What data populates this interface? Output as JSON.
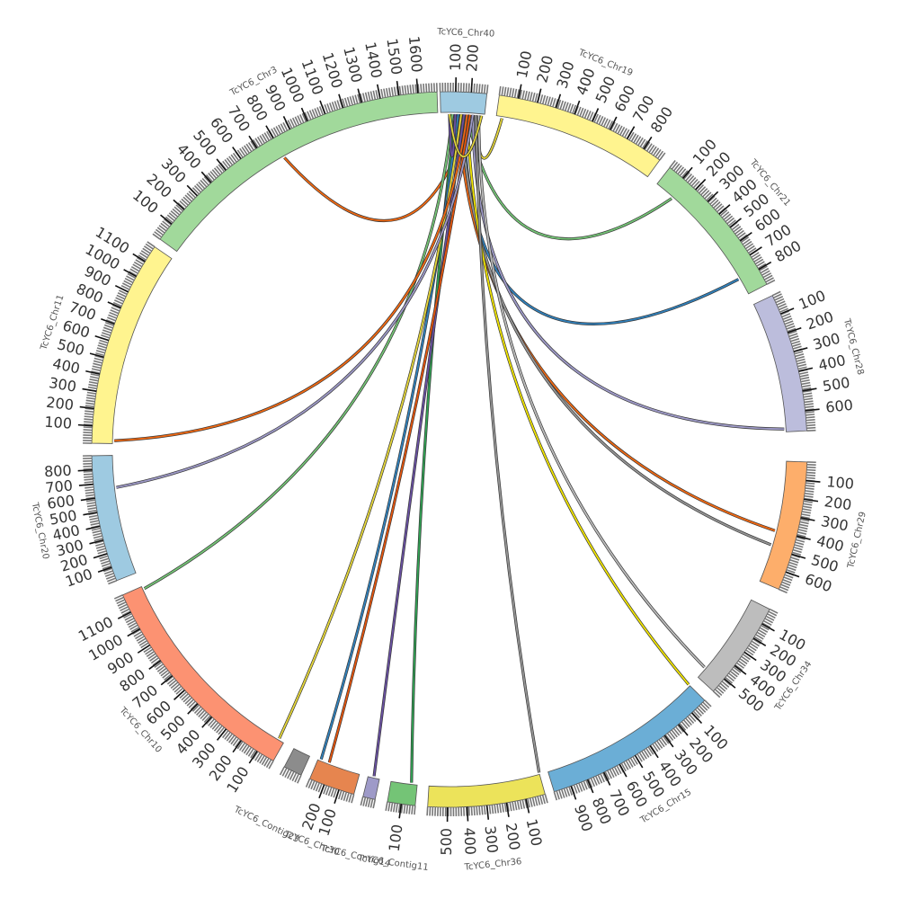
{
  "chromosomes": [
    {
      "name": "TcYC6_Chr40",
      "color": "#9ecae1",
      "start_deg": -1.5,
      "end_deg": 6.0,
      "ticks": [
        "100",
        "200"
      ]
    },
    {
      "name": "TcYC6_Chr19",
      "color": "#fff48f",
      "start_deg": 8.0,
      "end_deg": 36.0,
      "ticks": [
        "100",
        "200",
        "300",
        "400",
        "500",
        "600",
        "700",
        "800"
      ]
    },
    {
      "name": "TcYC6_Chr21",
      "color": "#a1d99b",
      "start_deg": 38.0,
      "end_deg": 62.5,
      "ticks": [
        "100",
        "200",
        "300",
        "400",
        "500",
        "600",
        "700",
        "800"
      ]
    },
    {
      "name": "TcYC6_Chr28",
      "color": "#bcbddc",
      "start_deg": 64.5,
      "end_deg": 87.0,
      "ticks": [
        "100",
        "200",
        "300",
        "400",
        "500",
        "600"
      ]
    },
    {
      "name": "TcYC6_Chr29",
      "color": "#fdae6b",
      "start_deg": 92.0,
      "end_deg": 113.0,
      "ticks": [
        "100",
        "200",
        "300",
        "400",
        "500",
        "600"
      ]
    },
    {
      "name": "TcYC6_Chr34",
      "color": "#bdbdbd",
      "start_deg": 116.5,
      "end_deg": 132.5,
      "ticks": [
        "100",
        "200",
        "300",
        "400",
        "500"
      ]
    },
    {
      "name": "TcYC6_Chr15",
      "color": "#6baed6",
      "start_deg": 134.5,
      "end_deg": 163.0,
      "ticks": [
        "100",
        "200",
        "300",
        "400",
        "500",
        "600",
        "700",
        "800",
        "900"
      ]
    },
    {
      "name": "TcYC6_Chr36",
      "color": "#ece35a",
      "start_deg": 164.5,
      "end_deg": 183.5,
      "ticks": [
        "100",
        "200",
        "300",
        "400",
        "500"
      ]
    },
    {
      "name": "TcYC6_Contig11",
      "color": "#74c476",
      "start_deg": 185.5,
      "end_deg": 190.0,
      "ticks": [
        "100"
      ]
    },
    {
      "name": "TcYC6_Contig14",
      "color": "#9e9ac8",
      "start_deg": 192.0,
      "end_deg": 194.0,
      "ticks": []
    },
    {
      "name": "TcYC6_Chr30",
      "color": "#e6854f",
      "start_deg": 195.5,
      "end_deg": 203.0,
      "ticks": [
        "100",
        "200"
      ]
    },
    {
      "name": "TcYC6_Contig23",
      "color": "#8c8c8c",
      "start_deg": 204.5,
      "end_deg": 207.5,
      "ticks": []
    },
    {
      "name": "TcYC6_Chr10",
      "color": "#fc9272",
      "start_deg": 209.5,
      "end_deg": 246.0,
      "ticks": [
        "100",
        "200",
        "300",
        "400",
        "500",
        "600",
        "700",
        "800",
        "900",
        "1000",
        "1100"
      ]
    },
    {
      "name": "TcYC6_Chr20",
      "color": "#9ecae1",
      "start_deg": 248.5,
      "end_deg": 269.0,
      "ticks": [
        "100",
        "200",
        "300",
        "400",
        "500",
        "600",
        "700",
        "800"
      ]
    },
    {
      "name": "TcYC6_Chr11",
      "color": "#fff48f",
      "start_deg": 271.0,
      "end_deg": 304.5,
      "ticks": [
        "100",
        "200",
        "300",
        "400",
        "500",
        "600",
        "700",
        "800",
        "900",
        "1000",
        "1100"
      ]
    },
    {
      "name": "TcYC6_Chr3",
      "color": "#a1d99b",
      "start_deg": 306.0,
      "end_deg": 358.0,
      "ticks": [
        "100",
        "200",
        "300",
        "400",
        "500",
        "600",
        "700",
        "800",
        "900",
        "1000",
        "1100",
        "1200",
        "1300",
        "1400",
        "1500",
        "1600"
      ]
    }
  ],
  "links": [
    {
      "from": "TcYC6_Chr40",
      "from_deg": 3.5,
      "to": "TcYC6_Chr3",
      "to_deg": 330.5,
      "color": "#f16913"
    },
    {
      "from": "TcYC6_Chr40",
      "from_deg": 4.5,
      "to": "TcYC6_Chr19",
      "to_deg": 9.0,
      "color": "#e7d83a"
    },
    {
      "from": "TcYC6_Chr40",
      "from_deg": 3.0,
      "to": "TcYC6_Chr21",
      "to_deg": 41.5,
      "color": "#74c476"
    },
    {
      "from": "TcYC6_Chr40",
      "from_deg": 2.5,
      "to": "TcYC6_Chr21",
      "to_deg": 59.5,
      "color": "#3182bd"
    },
    {
      "from": "TcYC6_Chr40",
      "from_deg": 4.0,
      "to": "TcYC6_Chr28",
      "to_deg": 86.5,
      "color": "#9e9ac8"
    },
    {
      "from": "TcYC6_Chr40",
      "from_deg": 1.5,
      "to": "TcYC6_Chr29",
      "to_deg": 104.0,
      "color": "#f16913"
    },
    {
      "from": "TcYC6_Chr40",
      "from_deg": 2.0,
      "to": "TcYC6_Chr29",
      "to_deg": 106.5,
      "color": "#969696"
    },
    {
      "from": "TcYC6_Chr40",
      "from_deg": 5.0,
      "to": "TcYC6_Chr34",
      "to_deg": 130.5,
      "color": "#bdbdbd"
    },
    {
      "from": "TcYC6_Chr40",
      "from_deg": 3.0,
      "to": "TcYC6_Chr15",
      "to_deg": 134.5,
      "color": "#f2e600"
    },
    {
      "from": "TcYC6_Chr40",
      "from_deg": 4.5,
      "to": "TcYC6_Chr36",
      "to_deg": 164.5,
      "color": "#969696"
    },
    {
      "from": "TcYC6_Chr40",
      "from_deg": 1.0,
      "to": "TcYC6_Contig11",
      "to_deg": 186.5,
      "color": "#31a354"
    },
    {
      "from": "TcYC6_Chr40",
      "from_deg": 2.5,
      "to": "TcYC6_Contig14",
      "to_deg": 193.0,
      "color": "#6a51a3"
    },
    {
      "from": "TcYC6_Chr40",
      "from_deg": 3.5,
      "to": "TcYC6_Chr30",
      "to_deg": 201.0,
      "color": "#e6550d"
    },
    {
      "from": "TcYC6_Chr40",
      "from_deg": 1.5,
      "to": "TcYC6_Chr30",
      "to_deg": 202.5,
      "color": "#3182bd"
    },
    {
      "from": "TcYC6_Chr40",
      "from_deg": 2.0,
      "to": "TcYC6_Chr10",
      "to_deg": 210.5,
      "color": "#e7d83a"
    },
    {
      "from": "TcYC6_Chr40",
      "from_deg": 0.5,
      "to": "TcYC6_Chr10",
      "to_deg": 245.5,
      "color": "#74c476"
    },
    {
      "from": "TcYC6_Chr40",
      "from_deg": 4.0,
      "to": "TcYC6_Chr20",
      "to_deg": 263.5,
      "color": "#9e9ac8"
    },
    {
      "from": "TcYC6_Chr40",
      "from_deg": 3.0,
      "to": "TcYC6_Chr11",
      "to_deg": 271.5,
      "color": "#f16913"
    },
    {
      "from": "TcYC6_Chr40",
      "from_deg": 1.0,
      "to": "TcYC6_Chr40",
      "to_deg": 0.0,
      "color": "#6a51a3"
    },
    {
      "from": "TcYC6_Chr40",
      "from_deg": 0.0,
      "to": "TcYC6_Chr40",
      "to_deg": 5.5,
      "color": "#e7d83a"
    }
  ]
}
